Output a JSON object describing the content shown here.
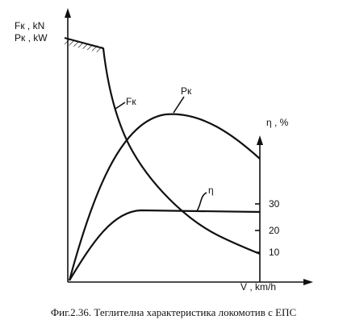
{
  "axes": {
    "left_top": "Fк , kN",
    "left_bottom": "Pк , kW",
    "right": "η , %",
    "bottom": "V , km/h"
  },
  "curves": {
    "force": "Fк",
    "power": "Pк",
    "efficiency": "η"
  },
  "right_ticks": [
    "30",
    "20",
    "10"
  ],
  "caption": "Фиг.2.36. Теглителна характеристика локомотив с ЕПС"
}
